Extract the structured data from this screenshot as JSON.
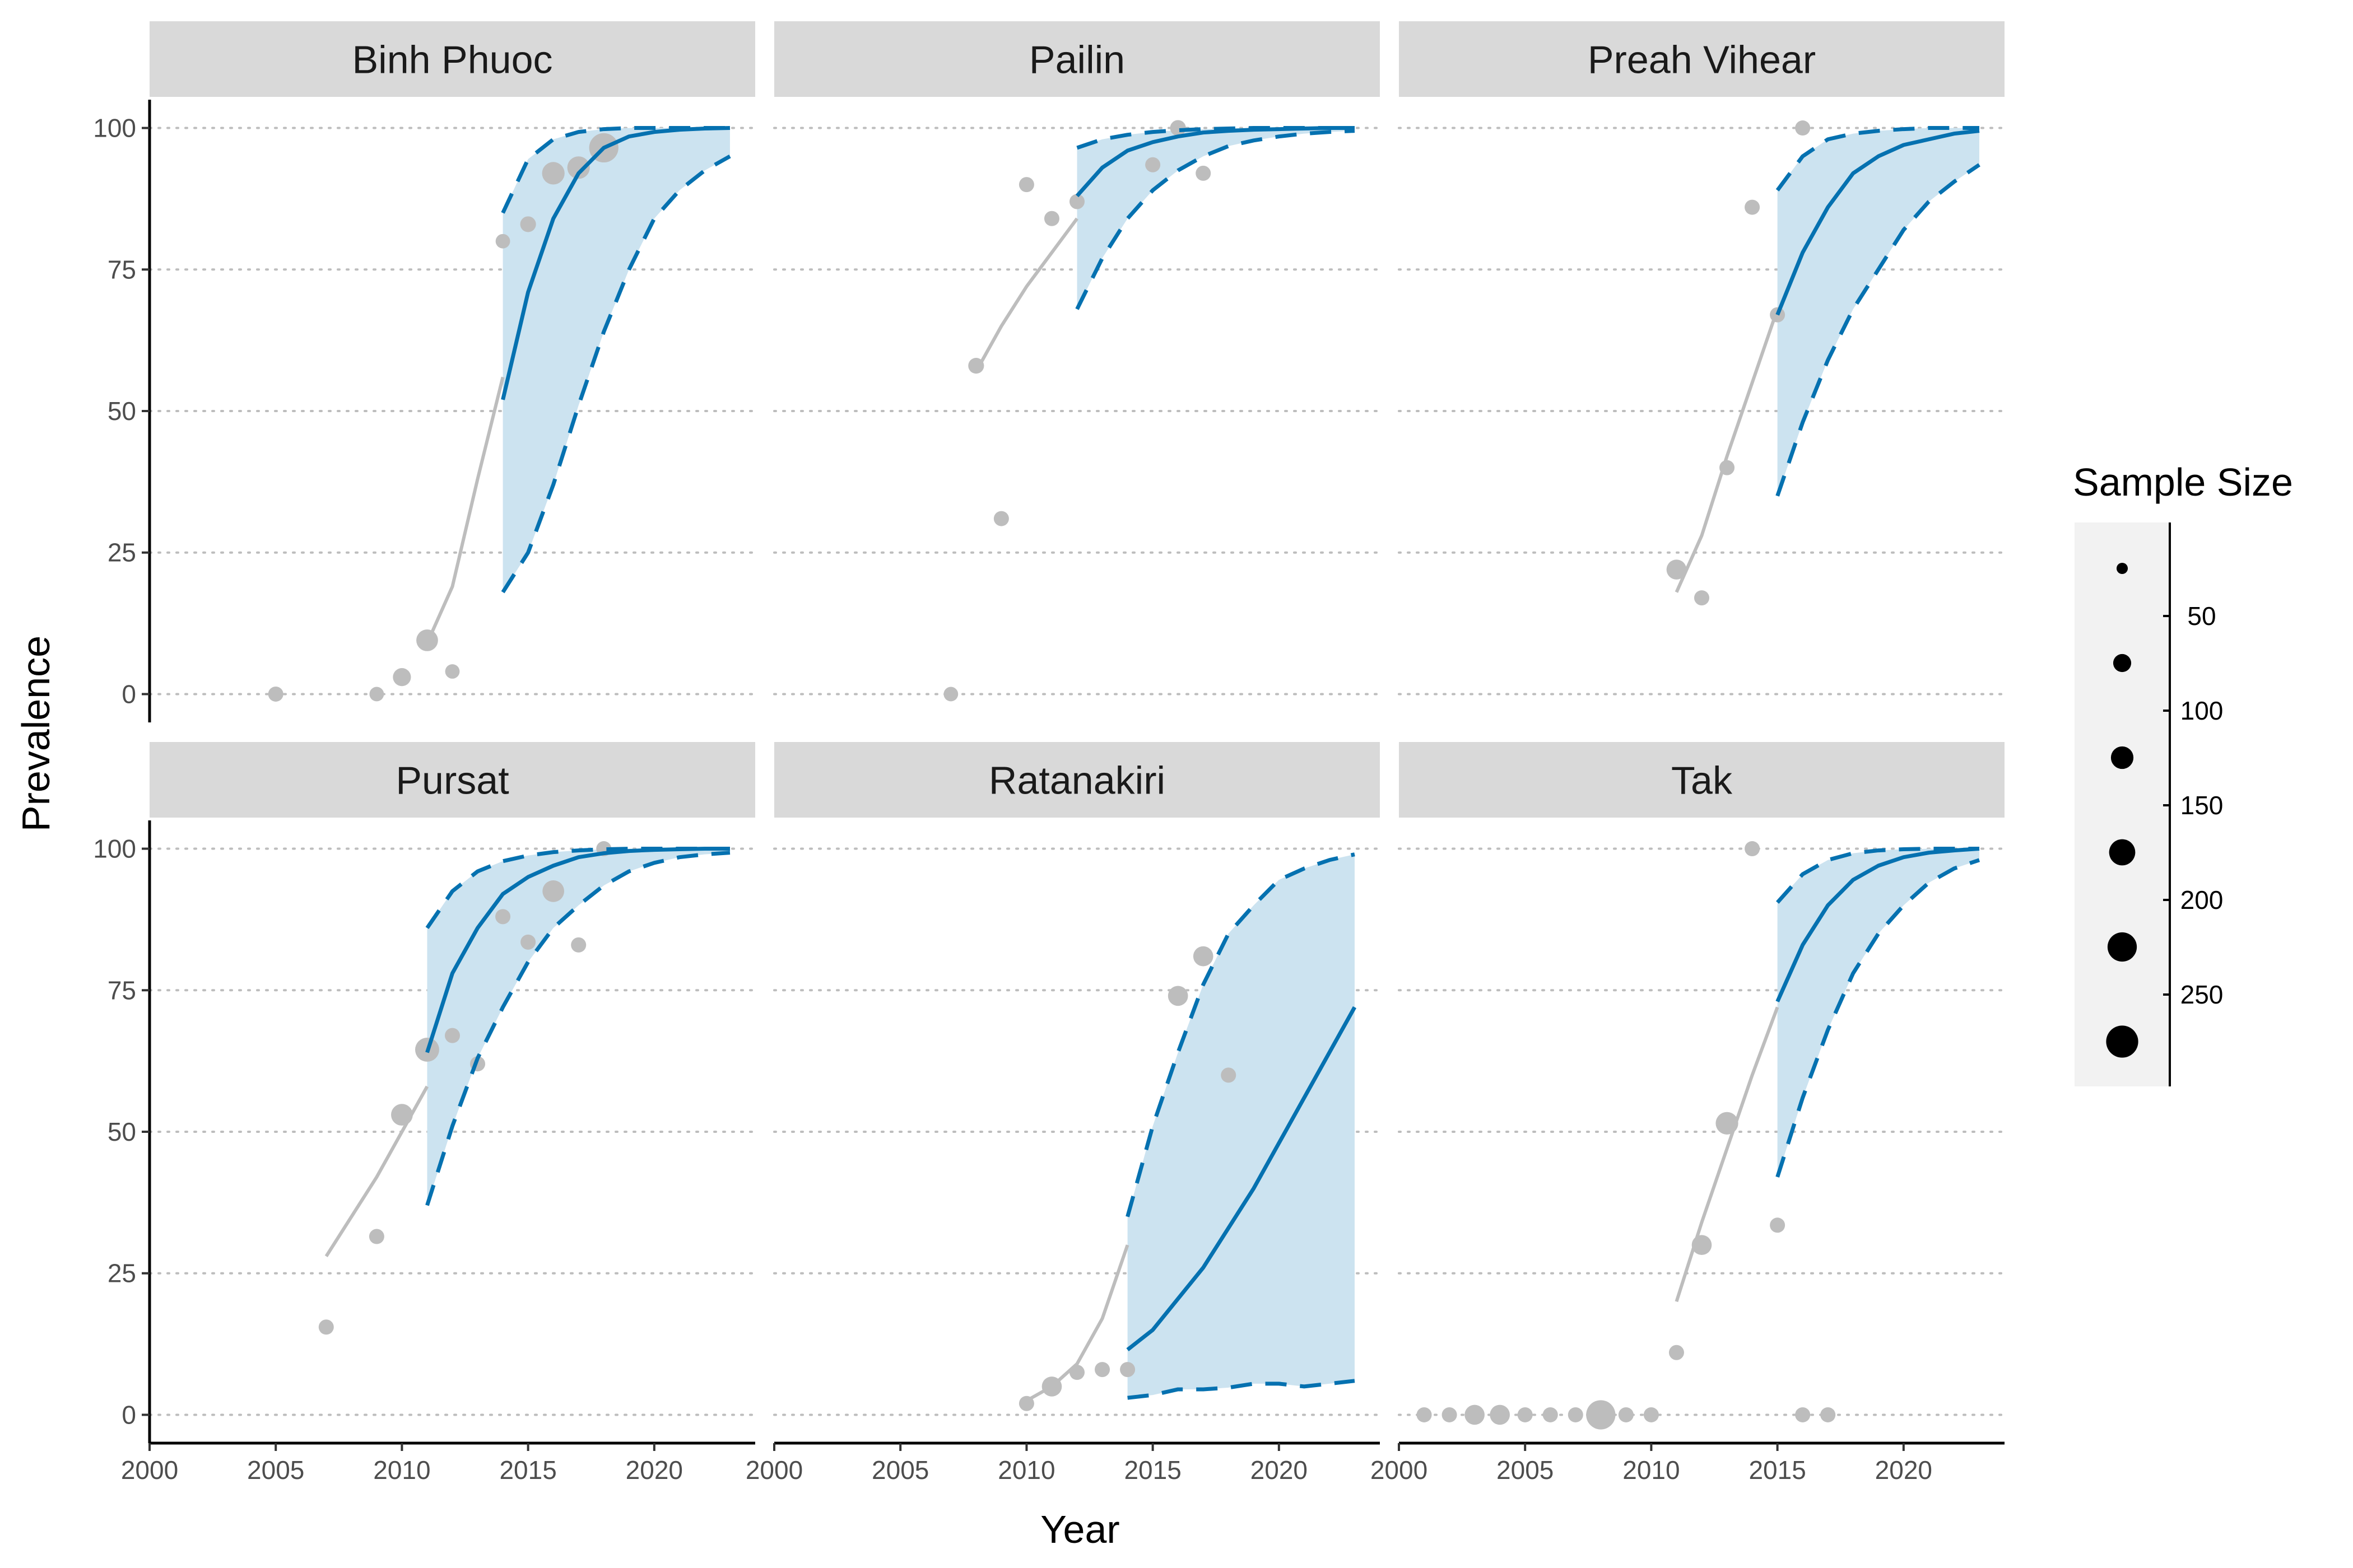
{
  "chart_data": {
    "type": "scatter",
    "xlabel": "Year",
    "ylabel": "Prevalence",
    "xlim": [
      2000,
      2024
    ],
    "ylim": [
      -5,
      105
    ],
    "xticks": [
      2000,
      2005,
      2010,
      2015,
      2020
    ],
    "yticks": [
      0,
      25,
      50,
      75,
      100
    ],
    "grid": "horizontal dotted",
    "colors": {
      "observed": "#bdbdbd",
      "model": "#0571b0",
      "ribbon": "#cce3f0",
      "strip": "#d9d9d9",
      "legend_bg": "#f2f2f2"
    },
    "legend": {
      "title": "Sample Size",
      "placement": "right",
      "breaks": [
        50,
        100,
        150,
        200,
        250
      ],
      "keys": [
        20,
        70,
        120,
        170,
        220,
        270
      ],
      "size_range": [
        10,
        300
      ]
    },
    "panels": [
      {
        "title": "Binh Phuoc",
        "points": [
          [
            2005,
            0,
            45
          ],
          [
            2009,
            0,
            40
          ],
          [
            2010,
            3,
            70
          ],
          [
            2011,
            9.5,
            110
          ],
          [
            2012,
            4,
            40
          ],
          [
            2014,
            80,
            40
          ],
          [
            2015,
            83,
            50
          ],
          [
            2016,
            92,
            120
          ],
          [
            2017,
            93,
            120
          ],
          [
            2018,
            96.5,
            220
          ]
        ],
        "fit": [
          [
            2011,
            9
          ],
          [
            2012,
            19
          ],
          [
            2013,
            38
          ],
          [
            2014,
            56
          ]
        ],
        "projection": {
          "years": [
            2014,
            2015,
            2016,
            2017,
            2018,
            2019,
            2020,
            2021,
            2022,
            2023
          ],
          "mean": [
            52,
            71,
            84,
            92,
            96.5,
            98.5,
            99.3,
            99.7,
            99.9,
            100
          ],
          "lower": [
            18,
            25,
            37,
            51,
            64,
            75,
            84,
            89,
            92.5,
            95
          ],
          "upper": [
            85,
            94.5,
            98,
            99.3,
            99.8,
            100,
            100,
            100,
            100,
            100
          ]
        }
      },
      {
        "title": "Pailin",
        "points": [
          [
            2007,
            0,
            40
          ],
          [
            2008,
            58,
            50
          ],
          [
            2009,
            31,
            45
          ],
          [
            2010,
            90,
            45
          ],
          [
            2011,
            84,
            45
          ],
          [
            2012,
            87,
            45
          ],
          [
            2015,
            93.5,
            45
          ],
          [
            2016,
            100,
            50
          ],
          [
            2017,
            92,
            45
          ]
        ],
        "fit": [
          [
            2008,
            57
          ],
          [
            2009,
            65
          ],
          [
            2010,
            72
          ],
          [
            2011,
            78
          ],
          [
            2012,
            84
          ]
        ],
        "projection": {
          "years": [
            2012,
            2013,
            2014,
            2015,
            2016,
            2017,
            2018,
            2019,
            2020,
            2021,
            2022,
            2023
          ],
          "mean": [
            88,
            93,
            96,
            97.5,
            98.5,
            99.2,
            99.5,
            99.7,
            99.8,
            99.9,
            100,
            100
          ],
          "lower": [
            68,
            77,
            84,
            89,
            92.5,
            95,
            96.8,
            97.8,
            98.5,
            99,
            99.3,
            99.5
          ],
          "upper": [
            96.5,
            98,
            98.8,
            99.3,
            99.6,
            99.8,
            99.9,
            100,
            100,
            100,
            100,
            100
          ]
        }
      },
      {
        "title": "Preah Vihear",
        "points": [
          [
            2011,
            22,
            90
          ],
          [
            2012,
            17,
            45
          ],
          [
            2013,
            40,
            45
          ],
          [
            2014,
            86,
            45
          ],
          [
            2015,
            67,
            45
          ],
          [
            2016,
            100,
            45
          ]
        ],
        "fit": [
          [
            2011,
            18
          ],
          [
            2012,
            28
          ],
          [
            2013,
            42
          ],
          [
            2014,
            55
          ],
          [
            2015,
            68
          ]
        ],
        "projection": {
          "years": [
            2015,
            2016,
            2017,
            2018,
            2019,
            2020,
            2021,
            2022,
            2023
          ],
          "mean": [
            67,
            78,
            86,
            92,
            95,
            97,
            98,
            99,
            99.5
          ],
          "lower": [
            35,
            48,
            59,
            68,
            75,
            82,
            87,
            90.5,
            93.5
          ],
          "upper": [
            89,
            95,
            98,
            99,
            99.5,
            99.8,
            100,
            100,
            100
          ]
        }
      },
      {
        "title": "Pursat",
        "points": [
          [
            2007,
            15.5,
            45
          ],
          [
            2009,
            31.5,
            45
          ],
          [
            2010,
            53,
            110
          ],
          [
            2011,
            64.5,
            140
          ],
          [
            2012,
            67,
            45
          ],
          [
            2013,
            62,
            45
          ],
          [
            2014,
            88,
            45
          ],
          [
            2015,
            83.5,
            45
          ],
          [
            2016,
            92.5,
            110
          ],
          [
            2017,
            83,
            45
          ],
          [
            2018,
            100,
            45
          ]
        ],
        "fit": [
          [
            2007,
            28
          ],
          [
            2008,
            35
          ],
          [
            2009,
            42
          ],
          [
            2010,
            50
          ],
          [
            2011,
            58
          ]
        ],
        "projection": {
          "years": [
            2011,
            2012,
            2013,
            2014,
            2015,
            2016,
            2017,
            2018,
            2019,
            2020,
            2021,
            2022,
            2023
          ],
          "mean": [
            64,
            78,
            86,
            92,
            95,
            97,
            98.5,
            99.2,
            99.6,
            99.8,
            99.9,
            100,
            100
          ],
          "lower": [
            37,
            51,
            63,
            72,
            80,
            86,
            90,
            93.5,
            96,
            97.5,
            98.5,
            99,
            99.3
          ],
          "upper": [
            86,
            92.5,
            96,
            97.8,
            98.8,
            99.4,
            99.7,
            99.9,
            100,
            100,
            100,
            100,
            100
          ]
        }
      },
      {
        "title": "Ratanakiri",
        "points": [
          [
            2010,
            2,
            45
          ],
          [
            2011,
            5,
            90
          ],
          [
            2012,
            7.5,
            45
          ],
          [
            2013,
            8,
            45
          ],
          [
            2014,
            8,
            45
          ],
          [
            2016,
            74,
            90
          ],
          [
            2017,
            81,
            90
          ],
          [
            2018,
            60,
            45
          ]
        ],
        "fit": [
          [
            2010,
            2.5
          ],
          [
            2011,
            5
          ],
          [
            2012,
            9
          ],
          [
            2013,
            17
          ],
          [
            2014,
            30
          ]
        ],
        "projection": {
          "years": [
            2014,
            2015,
            2016,
            2017,
            2018,
            2019,
            2020,
            2021,
            2022,
            2023
          ],
          "mean": [
            11.5,
            15,
            20.5,
            26,
            33,
            40,
            48,
            56,
            64,
            72
          ],
          "lower": [
            3,
            3.5,
            4.5,
            4.5,
            4.8,
            5.5,
            5.5,
            5,
            5.5,
            6
          ],
          "upper": [
            35,
            51,
            64,
            76,
            85,
            90,
            94.5,
            96.5,
            98,
            99
          ]
        }
      },
      {
        "title": "Tak",
        "points": [
          [
            2001,
            0,
            45
          ],
          [
            2002,
            0,
            45
          ],
          [
            2003,
            0,
            90
          ],
          [
            2004,
            0,
            90
          ],
          [
            2005,
            0,
            45
          ],
          [
            2006,
            0,
            45
          ],
          [
            2007,
            0,
            45
          ],
          [
            2008,
            0,
            220
          ],
          [
            2009,
            0,
            45
          ],
          [
            2010,
            0,
            45
          ],
          [
            2011,
            11,
            45
          ],
          [
            2012,
            30,
            90
          ],
          [
            2013,
            51.5,
            120
          ],
          [
            2014,
            100,
            45
          ],
          [
            2015,
            33.5,
            45
          ],
          [
            2016,
            0,
            45
          ],
          [
            2017,
            0,
            45
          ]
        ],
        "fit": [
          [
            2011,
            20
          ],
          [
            2012,
            34
          ],
          [
            2013,
            47
          ],
          [
            2014,
            60
          ],
          [
            2015,
            72
          ]
        ],
        "projection": {
          "years": [
            2015,
            2016,
            2017,
            2018,
            2019,
            2020,
            2021,
            2022,
            2023
          ],
          "mean": [
            73,
            83,
            90,
            94.5,
            97,
            98.5,
            99.3,
            99.7,
            100
          ],
          "lower": [
            42,
            56,
            68,
            78,
            85,
            90,
            94,
            96.5,
            98
          ],
          "upper": [
            90.5,
            95.5,
            98,
            99.2,
            99.7,
            99.9,
            100,
            100,
            100
          ]
        }
      }
    ]
  }
}
